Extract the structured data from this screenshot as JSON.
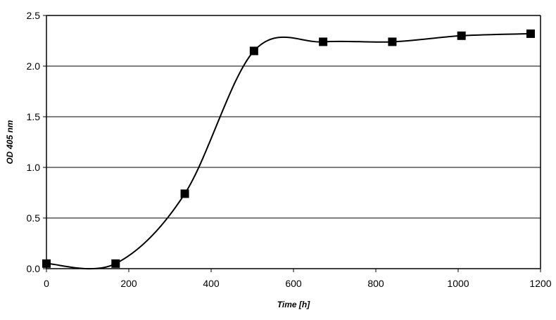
{
  "chart_data": {
    "type": "line",
    "title": "",
    "xlabel": "Time [h]",
    "ylabel": "OD 405 nm",
    "xlim": [
      0,
      1200
    ],
    "ylim": [
      0,
      2.5
    ],
    "x_ticks": [
      "0",
      "200",
      "400",
      "600",
      "800",
      "1000",
      "1200"
    ],
    "y_ticks": [
      "0.0",
      "0.5",
      "1.0",
      "1.5",
      "2.0",
      "2.5"
    ],
    "grid": true,
    "legend": "none",
    "smoothed": true,
    "marker": "square",
    "line_color": "#000000",
    "series": [
      {
        "x": [
          0,
          168,
          336,
          504,
          672,
          840,
          1008,
          1176
        ],
        "y": [
          0.05,
          0.05,
          0.74,
          2.15,
          2.24,
          2.24,
          2.3,
          2.32
        ]
      }
    ]
  }
}
